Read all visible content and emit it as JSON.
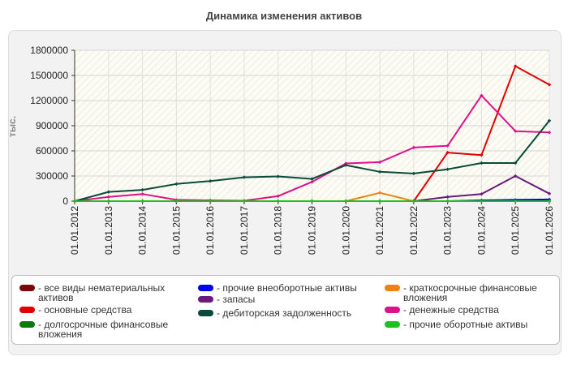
{
  "chart_data": {
    "type": "line",
    "title": "Динамика изменения активов",
    "ylabel": "тыс.",
    "xlabel": "",
    "ylim": [
      0,
      1800000
    ],
    "yticks": [
      0,
      300000,
      600000,
      900000,
      1200000,
      1500000,
      1800000
    ],
    "grid": true,
    "legend_position": "bottom",
    "x": [
      "01.01.2012",
      "01.01.2013",
      "01.01.2014",
      "01.01.2015",
      "01.01.2016",
      "01.01.2017",
      "01.01.2018",
      "01.01.2019",
      "01.01.2020",
      "01.01.2021",
      "01.01.2022",
      "01.01.2023",
      "01.01.2024",
      "01.01.2025",
      "01.01.2026"
    ],
    "series": [
      {
        "name": "- все виды нематериальных активов",
        "color": "#7a0a0a",
        "values": [
          0,
          0,
          0,
          0,
          0,
          0,
          0,
          0,
          0,
          0,
          0,
          0,
          0,
          0,
          0
        ]
      },
      {
        "name": "- прочие внеоборотные активы",
        "color": "#0000ee",
        "values": [
          0,
          0,
          0,
          0,
          0,
          0,
          0,
          0,
          0,
          0,
          0,
          0,
          10000,
          15000,
          20000
        ]
      },
      {
        "name": "- краткосрочные финансовые вложения",
        "color": "#f08010",
        "values": [
          0,
          0,
          0,
          0,
          0,
          0,
          0,
          0,
          0,
          100000,
          0,
          0,
          0,
          0,
          0
        ]
      },
      {
        "name": "- основные средства",
        "color": "#e00000",
        "values": [
          0,
          0,
          0,
          0,
          0,
          0,
          0,
          0,
          0,
          0,
          0,
          580000,
          550000,
          1610000,
          1390000
        ]
      },
      {
        "name": "- запасы",
        "color": "#6a1a7a",
        "values": [
          0,
          0,
          0,
          0,
          0,
          0,
          0,
          0,
          0,
          0,
          0,
          50000,
          85000,
          300000,
          90000
        ]
      },
      {
        "name": "- денежные средства",
        "color": "#e0108a",
        "values": [
          0,
          50000,
          85000,
          15000,
          10000,
          5000,
          60000,
          230000,
          450000,
          465000,
          640000,
          660000,
          1260000,
          835000,
          820000
        ]
      },
      {
        "name": "- долгосрочные финансовые вложения",
        "color": "#0a7a0a",
        "values": [
          0,
          0,
          0,
          0,
          0,
          0,
          0,
          0,
          0,
          0,
          0,
          0,
          0,
          0,
          0
        ]
      },
      {
        "name": "- дебиторская задолженность",
        "color": "#0a4a3a",
        "values": [
          0,
          110000,
          135000,
          205000,
          240000,
          285000,
          295000,
          265000,
          430000,
          350000,
          330000,
          380000,
          455000,
          455000,
          960000
        ]
      },
      {
        "name": "- прочие оборотные активы",
        "color": "#20c020",
        "values": [
          0,
          0,
          0,
          0,
          0,
          0,
          0,
          0,
          0,
          0,
          0,
          0,
          0,
          0,
          0
        ]
      }
    ]
  }
}
